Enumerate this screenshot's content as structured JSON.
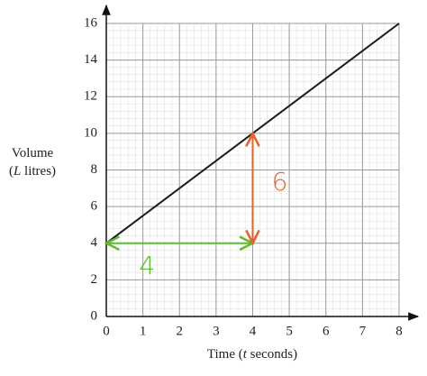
{
  "chart_data": {
    "type": "line",
    "x_label": [
      "Time (",
      "t",
      " seconds)"
    ],
    "y_label": [
      [
        "Volume"
      ],
      [
        "(",
        "L",
        " litres)"
      ]
    ],
    "series": [
      {
        "name": "Volume",
        "color": "#1a1a1a",
        "x": [
          0,
          8
        ],
        "values": [
          4,
          16
        ]
      }
    ],
    "xlim": [
      0,
      8
    ],
    "xticks": [
      0,
      1,
      2,
      3,
      4,
      5,
      6,
      7,
      8
    ],
    "ylim": [
      0,
      16
    ],
    "yticks": [
      0,
      2,
      4,
      6,
      8,
      10,
      12,
      14,
      16
    ],
    "grid": true,
    "annotations": [
      {
        "text": "4",
        "color": "#5dbb2f",
        "x": [
          0,
          4
        ],
        "y": [
          4,
          4
        ]
      },
      {
        "text": "6",
        "color": "#e8622a",
        "x": [
          4,
          4
        ],
        "y": [
          4,
          10
        ]
      }
    ]
  }
}
